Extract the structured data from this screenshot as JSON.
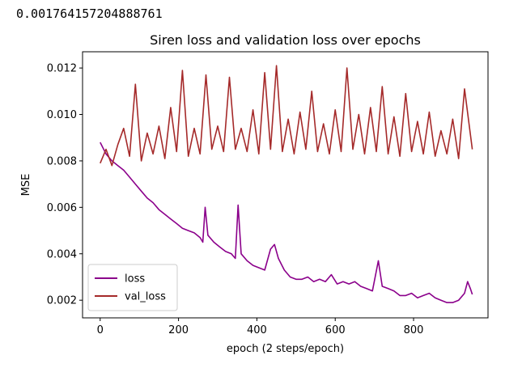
{
  "output": {
    "printed_value": "0.001764157204888761"
  },
  "chart_data": {
    "type": "line",
    "title": "Siren loss and validation loss over epochs",
    "xlabel": "epoch (2 steps/epoch)",
    "ylabel": "MSE",
    "xlim": [
      -45,
      990
    ],
    "ylim": [
      0.00124,
      0.0127
    ],
    "xticks": [
      "0",
      "200",
      "400",
      "600",
      "800"
    ],
    "yticks": [
      "0.002",
      "0.004",
      "0.006",
      "0.008",
      "0.010",
      "0.012"
    ],
    "grid": false,
    "legend_position": "lower-left",
    "colors": {
      "loss": "#8b008b",
      "val_loss": "#a52a2a"
    },
    "series": [
      {
        "name": "loss",
        "x": [
          0,
          15,
          30,
          45,
          60,
          75,
          90,
          105,
          120,
          135,
          150,
          165,
          180,
          195,
          210,
          225,
          240,
          255,
          262,
          268,
          275,
          290,
          305,
          320,
          335,
          345,
          352,
          360,
          375,
          390,
          405,
          420,
          435,
          445,
          455,
          470,
          485,
          500,
          515,
          530,
          545,
          560,
          575,
          590,
          605,
          620,
          635,
          650,
          665,
          680,
          695,
          710,
          720,
          735,
          750,
          765,
          780,
          795,
          810,
          825,
          840,
          855,
          870,
          885,
          900,
          915,
          930,
          938,
          945,
          950
        ],
        "values": [
          0.0088,
          0.0083,
          0.008,
          0.0078,
          0.0076,
          0.0073,
          0.007,
          0.0067,
          0.0064,
          0.0062,
          0.0059,
          0.0057,
          0.0055,
          0.0053,
          0.0051,
          0.005,
          0.0049,
          0.0047,
          0.0045,
          0.006,
          0.0048,
          0.0045,
          0.0043,
          0.0041,
          0.004,
          0.0038,
          0.0061,
          0.004,
          0.0037,
          0.0035,
          0.0034,
          0.0033,
          0.0042,
          0.0044,
          0.0038,
          0.0033,
          0.003,
          0.0029,
          0.0029,
          0.003,
          0.0028,
          0.0029,
          0.0028,
          0.0031,
          0.0027,
          0.0028,
          0.0027,
          0.0028,
          0.0026,
          0.0025,
          0.0024,
          0.0037,
          0.0026,
          0.0025,
          0.0024,
          0.0022,
          0.0022,
          0.0023,
          0.0021,
          0.0022,
          0.0023,
          0.0021,
          0.002,
          0.0019,
          0.0019,
          0.002,
          0.0023,
          0.0028,
          0.0025,
          0.00225
        ]
      },
      {
        "name": "val_loss",
        "x": [
          0,
          15,
          30,
          45,
          60,
          75,
          90,
          105,
          120,
          135,
          150,
          165,
          180,
          195,
          210,
          225,
          240,
          255,
          270,
          285,
          300,
          315,
          330,
          345,
          360,
          375,
          390,
          405,
          420,
          435,
          450,
          465,
          480,
          495,
          510,
          525,
          540,
          555,
          570,
          585,
          600,
          615,
          630,
          645,
          660,
          675,
          690,
          705,
          720,
          735,
          750,
          765,
          780,
          795,
          810,
          825,
          840,
          855,
          870,
          885,
          900,
          915,
          930,
          950
        ],
        "values": [
          0.0079,
          0.0085,
          0.0078,
          0.0087,
          0.0094,
          0.0082,
          0.0113,
          0.008,
          0.0092,
          0.0083,
          0.0095,
          0.0081,
          0.0103,
          0.0084,
          0.0119,
          0.0082,
          0.0094,
          0.0083,
          0.0117,
          0.0085,
          0.0095,
          0.0084,
          0.0116,
          0.0085,
          0.0094,
          0.0084,
          0.0102,
          0.0083,
          0.0118,
          0.0085,
          0.0121,
          0.0084,
          0.0098,
          0.0083,
          0.0101,
          0.0085,
          0.011,
          0.0084,
          0.0096,
          0.0083,
          0.0102,
          0.0084,
          0.012,
          0.0085,
          0.01,
          0.0083,
          0.0103,
          0.0084,
          0.0112,
          0.0083,
          0.0099,
          0.0082,
          0.0109,
          0.0084,
          0.0097,
          0.0083,
          0.0101,
          0.0082,
          0.0093,
          0.0083,
          0.0098,
          0.0081,
          0.0111,
          0.0085
        ]
      }
    ]
  }
}
